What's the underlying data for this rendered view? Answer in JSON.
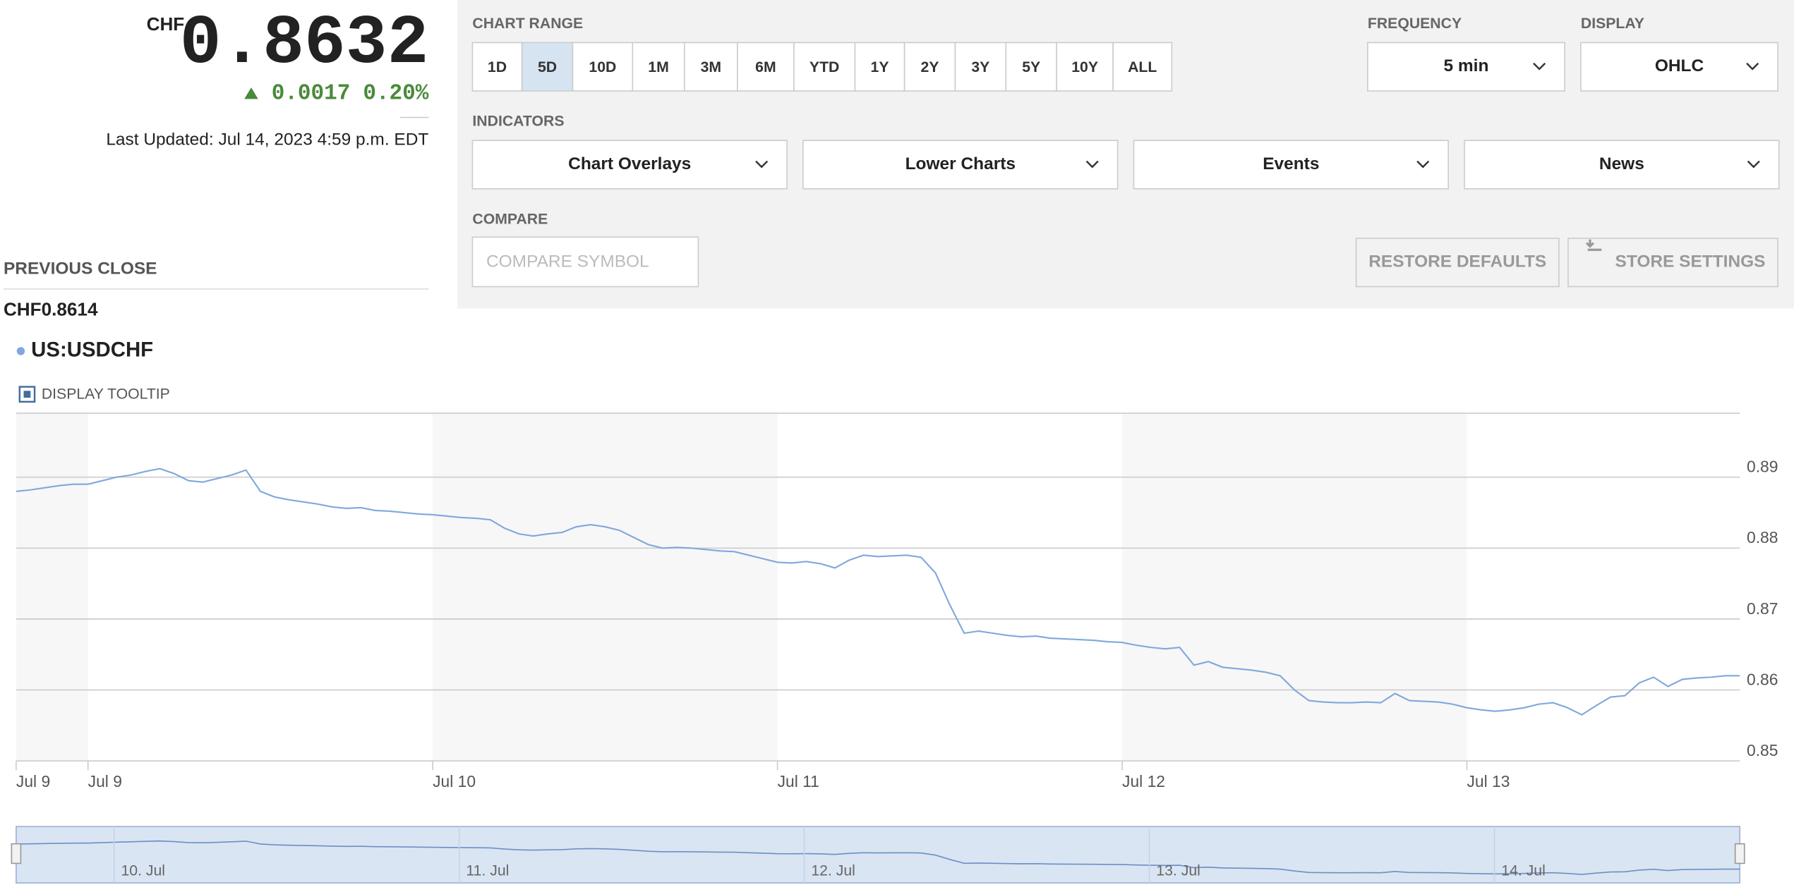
{
  "quote": {
    "currency": "CHF",
    "price": "0.8632",
    "change": "0.0017",
    "change_pct": "0.20%",
    "last_updated": "Last Updated: Jul 14, 2023 4:59 p.m. EDT",
    "previous_close_label": "PREVIOUS CLOSE",
    "previous_close": "CHF0.8614"
  },
  "controls": {
    "chart_range_label": "CHART RANGE",
    "ranges": [
      "1D",
      "5D",
      "10D",
      "1M",
      "3M",
      "6M",
      "YTD",
      "1Y",
      "2Y",
      "3Y",
      "5Y",
      "10Y",
      "ALL"
    ],
    "selected_range": "5D",
    "frequency_label": "FREQUENCY",
    "frequency": "5 min",
    "display_label": "DISPLAY",
    "display": "OHLC",
    "indicators_label": "INDICATORS",
    "indicators": [
      "Chart Overlays",
      "Lower Charts",
      "Events",
      "News"
    ],
    "compare_label": "COMPARE",
    "compare_placeholder": "COMPARE SYMBOL",
    "buttons": [
      "RESTORE DEFAULTS",
      "STORE SETTINGS"
    ]
  },
  "tooltip_label": "DISPLAY TOOLTIP",
  "chart_data": {
    "type": "line",
    "categories": [
      "Jul 9",
      null,
      null,
      null,
      null,
      "Jul 9",
      null,
      null,
      null,
      null,
      null,
      null,
      null,
      null,
      null,
      null,
      null,
      null,
      null,
      null,
      null,
      null,
      null,
      null,
      null,
      null,
      null,
      null,
      null,
      "Jul 10",
      null,
      null,
      null,
      null,
      null,
      null,
      null,
      null,
      null,
      null,
      null,
      null,
      null,
      null,
      null,
      null,
      null,
      null,
      null,
      null,
      null,
      null,
      null,
      "Jul 11",
      null,
      null,
      null,
      null,
      null,
      null,
      null,
      null,
      null,
      null,
      null,
      null,
      null,
      null,
      null,
      null,
      null,
      null,
      null,
      null,
      null,
      null,
      null,
      "Jul 12",
      null,
      null,
      null,
      null,
      null,
      null,
      null,
      null,
      null,
      null,
      null,
      null,
      null,
      null,
      null,
      null,
      null,
      null,
      null,
      null,
      null,
      null,
      null,
      "Jul 13",
      null,
      null,
      null,
      null,
      null,
      null,
      null,
      null,
      null,
      null,
      null,
      null,
      null,
      null,
      null,
      null,
      null,
      null,
      null
    ],
    "series": [
      {
        "name": "US:USDCHF",
        "color": "#7fa8dc",
        "values": [
          0.888,
          0.8882,
          0.8885,
          0.8888,
          0.889,
          0.889,
          0.8895,
          0.89,
          0.8903,
          0.8908,
          0.8912,
          0.8905,
          0.8895,
          0.8893,
          0.8898,
          0.8903,
          0.891,
          0.888,
          0.8872,
          0.8868,
          0.8865,
          0.8862,
          0.8858,
          0.8856,
          0.8857,
          0.8853,
          0.8852,
          0.885,
          0.8848,
          0.8847,
          0.8845,
          0.8843,
          0.8842,
          0.884,
          0.8828,
          0.882,
          0.8817,
          0.882,
          0.8822,
          0.883,
          0.8833,
          0.883,
          0.8825,
          0.8815,
          0.8805,
          0.88,
          0.8801,
          0.88,
          0.8798,
          0.8796,
          0.8795,
          0.879,
          0.8785,
          0.878,
          0.8779,
          0.8781,
          0.8778,
          0.8772,
          0.8783,
          0.879,
          0.8788,
          0.8789,
          0.879,
          0.8787,
          0.8765,
          0.872,
          0.868,
          0.8683,
          0.868,
          0.8677,
          0.8675,
          0.8676,
          0.8673,
          0.8672,
          0.8671,
          0.867,
          0.8668,
          0.8667,
          0.8663,
          0.866,
          0.8658,
          0.866,
          0.8635,
          0.864,
          0.8632,
          0.863,
          0.8628,
          0.8625,
          0.862,
          0.86,
          0.8585,
          0.8583,
          0.8582,
          0.8582,
          0.8583,
          0.8582,
          0.8595,
          0.8585,
          0.8584,
          0.8583,
          0.858,
          0.8575,
          0.8572,
          0.857,
          0.8572,
          0.8575,
          0.858,
          0.8582,
          0.8575,
          0.8565,
          0.8578,
          0.859,
          0.8592,
          0.861,
          0.8618,
          0.8605,
          0.8615,
          0.8617,
          0.8618,
          0.862,
          0.862
        ]
      }
    ],
    "ylim": [
      0.85,
      0.899
    ],
    "yticks": [
      0.85,
      0.86,
      0.87,
      0.88,
      0.89
    ],
    "grid": true,
    "navigator_labels": [
      "10. Jul",
      "11. Jul",
      "12. Jul",
      "13. Jul",
      "14. Jul"
    ]
  }
}
